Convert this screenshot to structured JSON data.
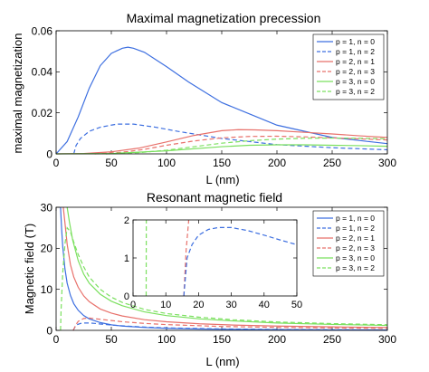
{
  "chart_data": [
    {
      "type": "line",
      "title": "Maximal magnetization precession",
      "xlabel": "L (nm)",
      "ylabel": "maximal magnetization",
      "xlim": [
        0,
        300
      ],
      "ylim": [
        0,
        0.06
      ],
      "xticks": [
        "0",
        "50",
        "100",
        "150",
        "200",
        "250",
        "300"
      ],
      "yticks": [
        "0",
        "0.02",
        "0.04",
        "0.06"
      ],
      "grid": false,
      "legend_position": "top-right",
      "series": [
        {
          "name": "p = 1, n = 0",
          "color": "#3d6fe0",
          "dash": "solid",
          "x": [
            0,
            10,
            20,
            30,
            40,
            50,
            60,
            65,
            70,
            80,
            100,
            120,
            150,
            200,
            250,
            300
          ],
          "y": [
            0,
            0.006,
            0.018,
            0.032,
            0.043,
            0.049,
            0.0515,
            0.052,
            0.0515,
            0.0495,
            0.0425,
            0.035,
            0.025,
            0.014,
            0.008,
            0.005
          ]
        },
        {
          "name": "p = 1, n = 2",
          "color": "#3d6fe0",
          "dash": "dashed",
          "x": [
            16,
            18,
            22,
            30,
            40,
            55,
            70,
            90,
            110,
            150,
            200,
            250,
            300
          ],
          "y": [
            0,
            0.004,
            0.0075,
            0.011,
            0.013,
            0.0145,
            0.0145,
            0.013,
            0.011,
            0.0075,
            0.0045,
            0.003,
            0.002
          ]
        },
        {
          "name": "p = 2, n = 1",
          "color": "#e8716b",
          "dash": "solid",
          "x": [
            0,
            25,
            50,
            75,
            100,
            125,
            150,
            165,
            180,
            200,
            225,
            250,
            275,
            300
          ],
          "y": [
            0,
            0.0002,
            0.001,
            0.0028,
            0.0058,
            0.009,
            0.0113,
            0.0118,
            0.0117,
            0.0113,
            0.0105,
            0.0097,
            0.0088,
            0.008
          ]
        },
        {
          "name": "p = 2, n = 3",
          "color": "#e8716b",
          "dash": "dashed",
          "x": [
            35,
            60,
            80,
            100,
            125,
            150,
            175,
            200,
            225,
            250,
            275,
            300
          ],
          "y": [
            0,
            0.0008,
            0.0022,
            0.0042,
            0.0063,
            0.0078,
            0.0085,
            0.0086,
            0.0083,
            0.0078,
            0.0073,
            0.0068
          ]
        },
        {
          "name": "p = 3, n = 0",
          "color": "#7be05f",
          "dash": "solid",
          "x": [
            0,
            50,
            100,
            150,
            175,
            200,
            225,
            250,
            275,
            300
          ],
          "y": [
            0,
            0.0002,
            0.0015,
            0.0035,
            0.0042,
            0.0044,
            0.0044,
            0.0042,
            0.004,
            0.0037
          ]
        },
        {
          "name": "p = 3, n = 2",
          "color": "#7be05f",
          "dash": "dashed",
          "x": [
            45,
            75,
            100,
            125,
            150,
            175,
            200,
            225,
            250,
            275,
            300
          ],
          "y": [
            0,
            0.0006,
            0.0018,
            0.0035,
            0.0052,
            0.0064,
            0.0072,
            0.0076,
            0.0077,
            0.0076,
            0.0074
          ]
        }
      ]
    },
    {
      "type": "line",
      "title": "Resonant magnetic field",
      "xlabel": "L (nm)",
      "ylabel": "Magnetic field (T)",
      "xlim": [
        0,
        300
      ],
      "ylim": [
        0,
        30
      ],
      "xticks": [
        "0",
        "50",
        "100",
        "150",
        "200",
        "250",
        "300"
      ],
      "yticks": [
        "0",
        "10",
        "20",
        "30"
      ],
      "grid": false,
      "legend_position": "top-right",
      "series": [
        {
          "name": "p = 1, n = 0",
          "color": "#3d6fe0",
          "dash": "solid",
          "x": [
            4,
            5,
            6,
            8,
            10,
            13,
            16,
            20,
            25,
            30,
            40,
            50,
            60,
            80,
            100,
            130,
            160,
            200,
            250,
            300
          ],
          "y": [
            30,
            24.7,
            20.4,
            15,
            11.5,
            8.5,
            6.5,
            4.9,
            3.6,
            2.8,
            1.9,
            1.35,
            1.05,
            0.7,
            0.5,
            0.33,
            0.24,
            0.16,
            0.11,
            0.08
          ]
        },
        {
          "name": "p = 1, n = 2",
          "color": "#3d6fe0",
          "dash": "dashed",
          "x": [
            15.5,
            18,
            22,
            26,
            30,
            35,
            40,
            45,
            50,
            60,
            80,
            100,
            150,
            200,
            250,
            300
          ],
          "y": [
            0,
            1.3,
            1.68,
            1.8,
            1.8,
            1.7,
            1.55,
            1.42,
            1.3,
            1.1,
            0.8,
            0.6,
            0.35,
            0.22,
            0.15,
            0.1
          ]
        },
        {
          "name": "p = 2, n = 1",
          "color": "#e8716b",
          "dash": "solid",
          "x": [
            6.5,
            8,
            10,
            13,
            16,
            20,
            25,
            30,
            40,
            50,
            60,
            80,
            100,
            130,
            160,
            200,
            250,
            300
          ],
          "y": [
            30,
            26.2,
            21,
            16,
            13,
            10.5,
            8.4,
            7,
            5.2,
            4.2,
            3.5,
            2.6,
            2.1,
            1.6,
            1.3,
            1.05,
            0.85,
            0.7
          ]
        },
        {
          "name": "p = 2, n = 3",
          "color": "#e8716b",
          "dash": "dashed",
          "x": [
            15.5,
            18,
            20,
            25,
            30,
            40,
            50,
            60,
            80,
            100,
            150,
            200,
            250,
            300
          ],
          "y": [
            0,
            1.4,
            2.2,
            2.9,
            3,
            2.7,
            2.4,
            2.1,
            1.7,
            1.4,
            0.95,
            0.72,
            0.58,
            0.48
          ]
        },
        {
          "name": "p = 3, n = 0",
          "color": "#7be05f",
          "dash": "solid",
          "x": [
            10,
            12,
            15,
            20,
            25,
            30,
            40,
            50,
            60,
            80,
            100,
            130,
            160,
            200,
            250,
            300
          ],
          "y": [
            30,
            26.5,
            22,
            17,
            13.7,
            11.5,
            8.8,
            7.1,
            6,
            4.5,
            3.6,
            2.8,
            2.3,
            1.8,
            1.45,
            1.2
          ]
        },
        {
          "name": "p = 3, n = 2",
          "color": "#7be05f",
          "dash": "dashed",
          "x": [
            4,
            4.5,
            6,
            8,
            10,
            13,
            16,
            20,
            25,
            30,
            40,
            50,
            60,
            80,
            100,
            130,
            160,
            200,
            250,
            300
          ],
          "y": [
            0,
            5,
            14,
            21,
            25,
            24,
            21.5,
            18.5,
            15.5,
            13,
            10,
            8.1,
            6.8,
            5.1,
            4.1,
            3.2,
            2.6,
            2.05,
            1.65,
            1.37
          ]
        }
      ],
      "inset": {
        "xlim": [
          0,
          50
        ],
        "ylim": [
          0,
          2
        ],
        "xticks": [
          "0",
          "10",
          "20",
          "30",
          "40",
          "50"
        ],
        "yticks": [
          "0",
          "1",
          "2"
        ],
        "series": [
          {
            "color": "#7be05f",
            "dash": "dashed",
            "x": [
              4,
              4.05
            ],
            "y": [
              0,
              2
            ]
          },
          {
            "color": "#e8716b",
            "dash": "dashed",
            "x": [
              15.5,
              16.2,
              17
            ],
            "y": [
              0,
              1.2,
              2
            ]
          },
          {
            "color": "#3d6fe0",
            "dash": "dashed",
            "x": [
              15.5,
              16.5,
              18,
              20,
              23,
              26,
              30,
              35,
              40,
              45,
              50
            ],
            "y": [
              0,
              1.0,
              1.35,
              1.6,
              1.75,
              1.8,
              1.8,
              1.72,
              1.6,
              1.47,
              1.35
            ]
          }
        ]
      }
    }
  ]
}
